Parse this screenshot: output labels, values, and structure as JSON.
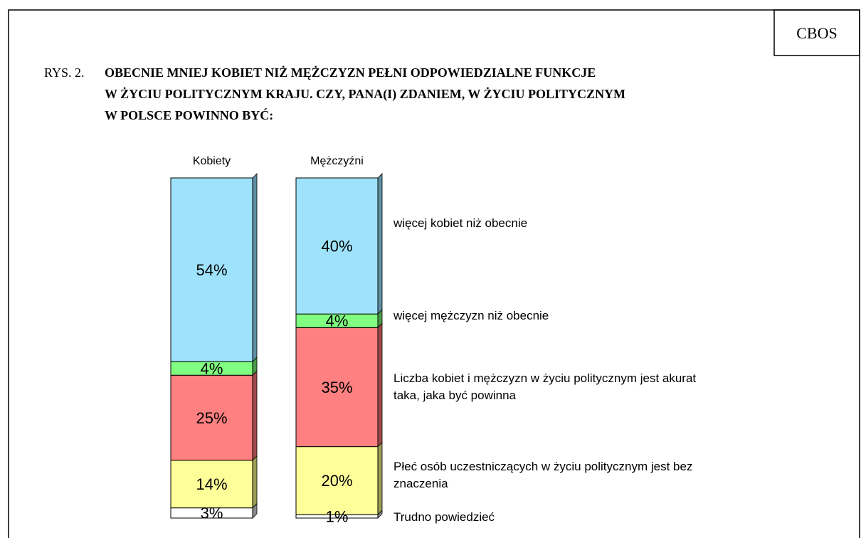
{
  "source": "CBOS",
  "chart_data": {
    "type": "stacked-bar",
    "figure_label": "RYS. 2.",
    "title": [
      "OBECNIE MNIEJ KOBIET NIŻ MĘŻCZYZN PEŁNI ODPOWIEDZIALNE FUNKCJE",
      "W ŻYCIU POLITYCZNYM KRAJU. CZY, PANA(I) ZDANIEM, W ŻYCIU POLITYCZNYM",
      "W POLSCE POWINNO BYĆ:"
    ],
    "categories": [
      "Kobiety",
      "Mężczyźni"
    ],
    "series": [
      {
        "name": "więcej kobiet niż obecnie",
        "color": "#9ee3fb",
        "side": "#5f8fa3",
        "values": [
          54,
          40
        ],
        "value_labels": [
          "54%",
          "40%"
        ]
      },
      {
        "name": "więcej mężczyzn niż obecnie",
        "color": "#80ff80",
        "side": "#4a9a4a",
        "values": [
          4,
          4
        ],
        "value_labels": [
          "4%",
          "4%"
        ]
      },
      {
        "name": "Liczba kobiet i mężczyzn w życiu politycznym jest akurat taka, jaka być powinna",
        "color": "#ff8080",
        "side": "#a04a4a",
        "values": [
          25,
          35
        ],
        "value_labels": [
          "25%",
          "35%"
        ]
      },
      {
        "name": "Płeć osób uczestniczących w życiu politycznym jest bez znaczenia",
        "color": "#ffff99",
        "side": "#9c9c55",
        "values": [
          14,
          20
        ],
        "value_labels": [
          "14%",
          "20%"
        ]
      },
      {
        "name": "Trudno powiedzieć",
        "color": "#ffffff",
        "side": "#8a8a8a",
        "values": [
          3,
          1
        ],
        "value_labels": [
          "3%",
          "1%"
        ]
      }
    ]
  }
}
